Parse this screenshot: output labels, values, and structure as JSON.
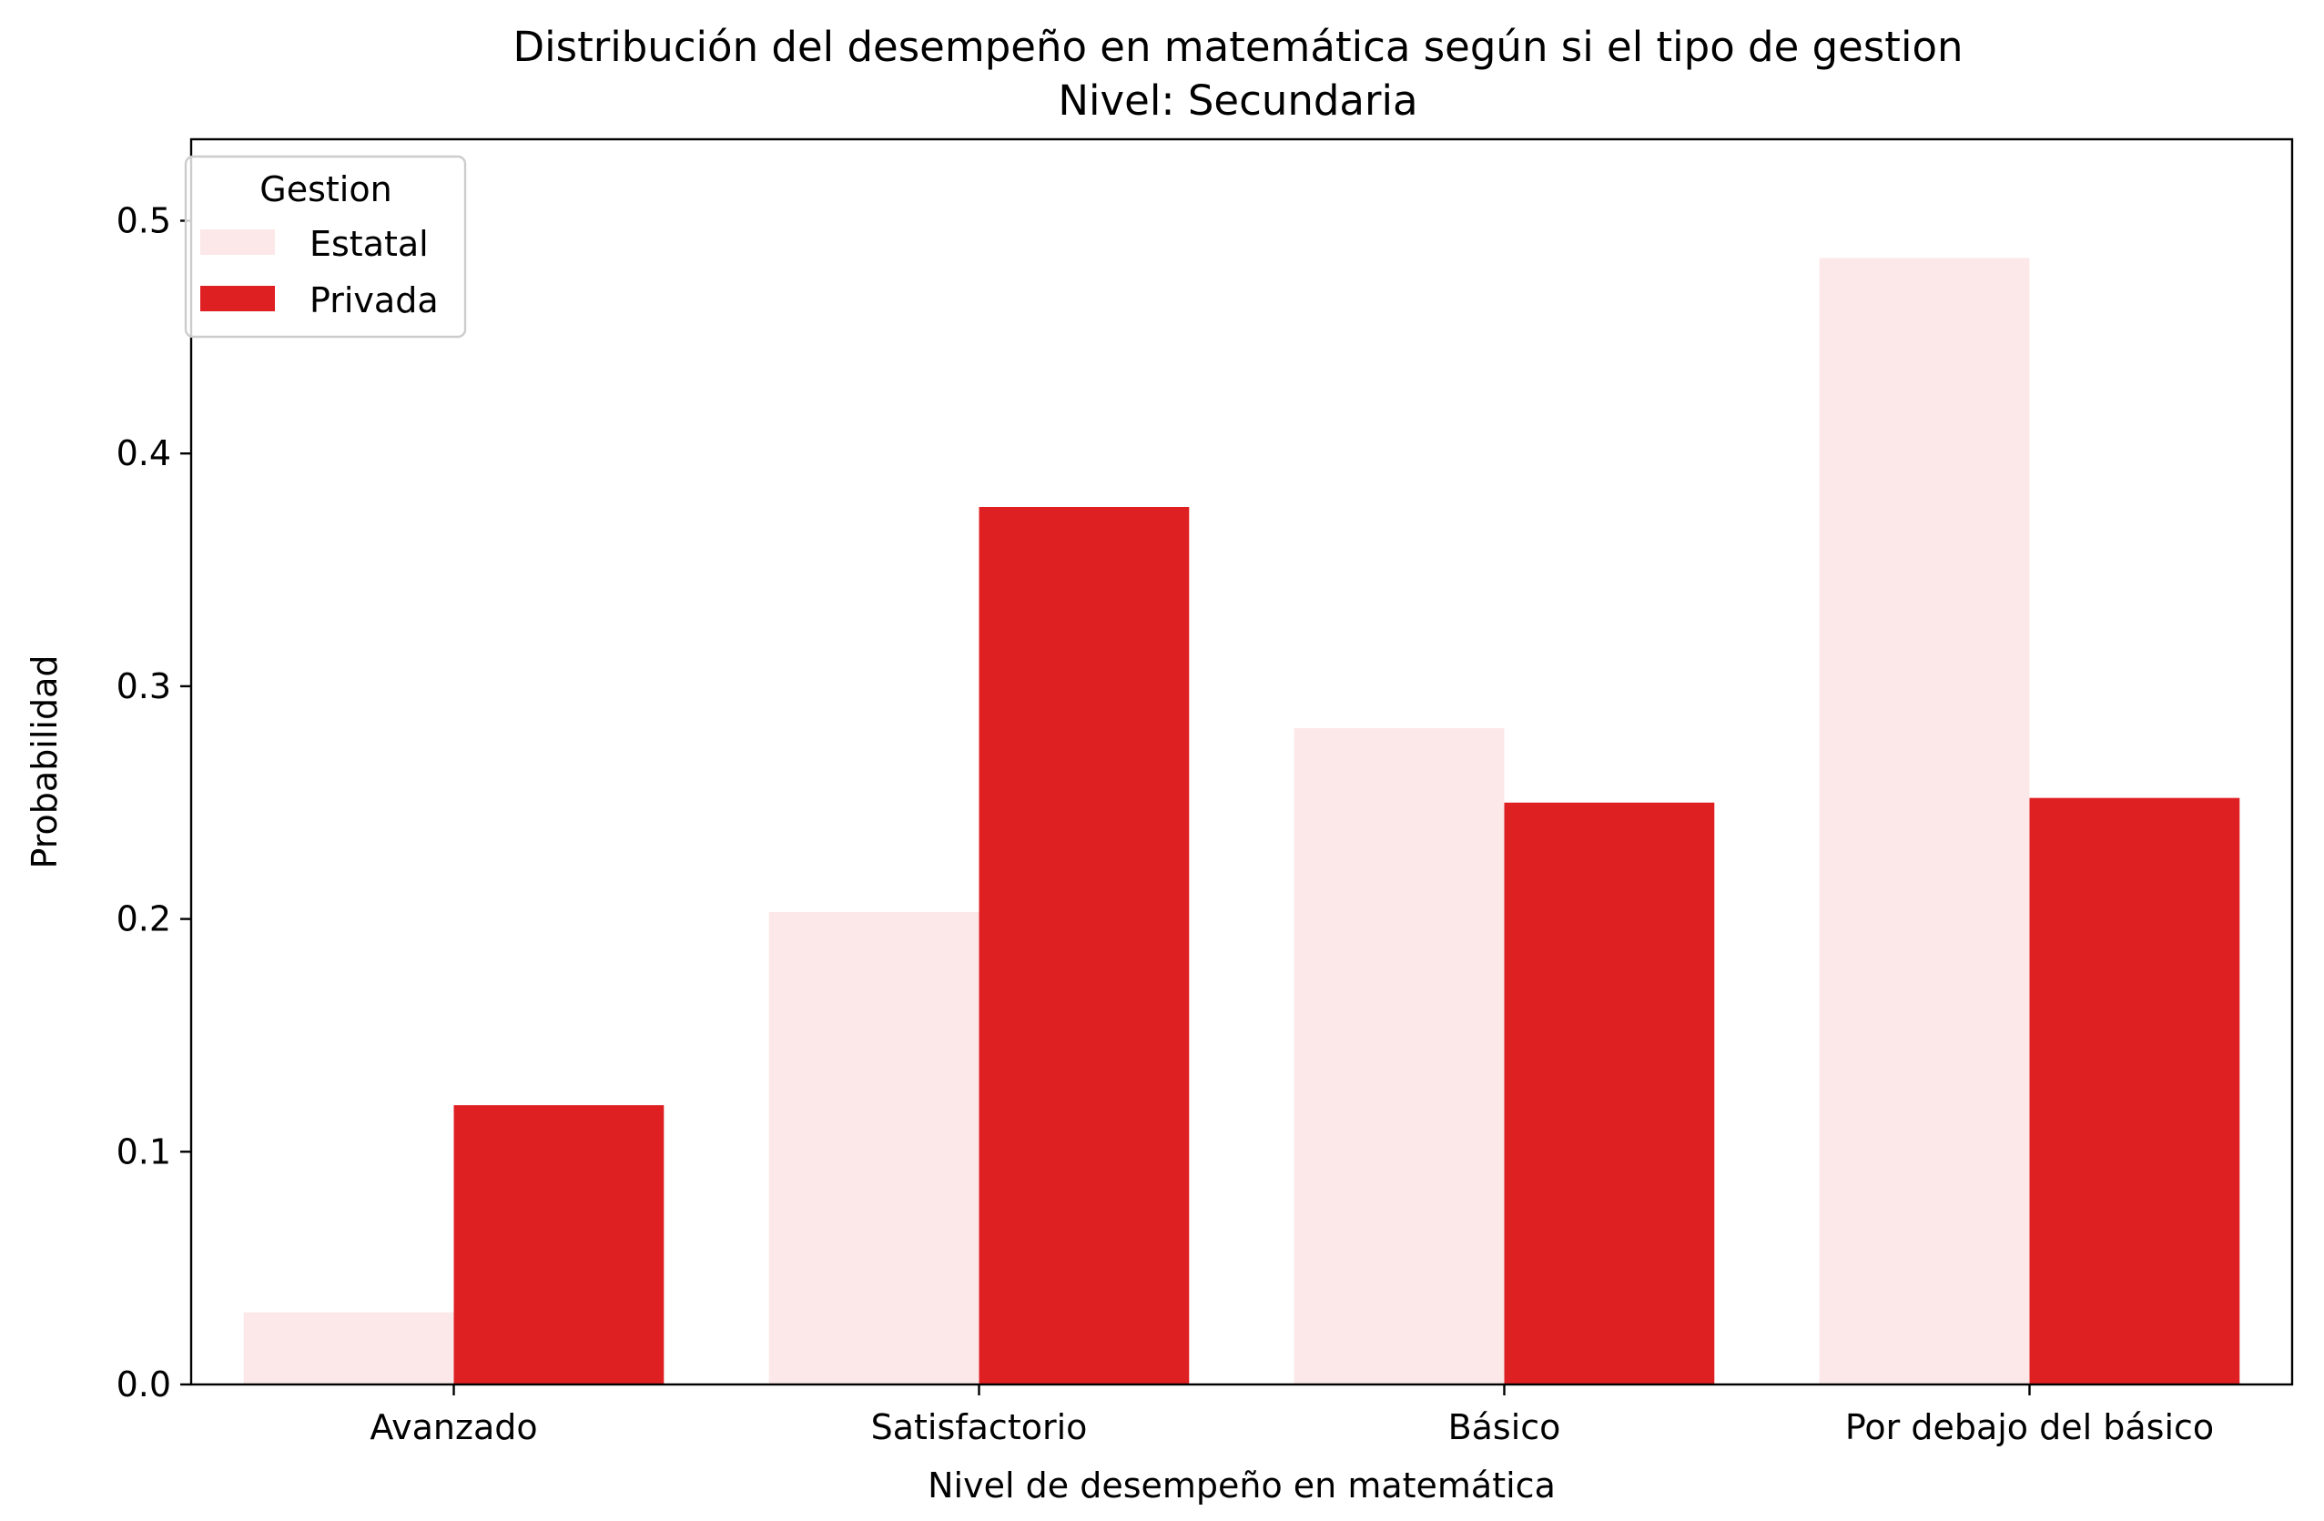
{
  "chart_data": {
    "type": "bar",
    "title": "Distribución del desempeño en matemática según si el tipo de gestion",
    "subtitle": "Nivel: Secundaria",
    "xlabel": "Nivel de desempeño en matemática",
    "ylabel": "Probabilidad",
    "categories": [
      "Avanzado",
      "Satisfactorio",
      "Básico",
      "Por debajo del básico"
    ],
    "ylim": [
      0,
      0.535
    ],
    "yticks": [
      0.0,
      0.1,
      0.2,
      0.3,
      0.4,
      0.5
    ],
    "ytick_labels": [
      "0.0",
      "0.1",
      "0.2",
      "0.3",
      "0.4",
      "0.5"
    ],
    "grid": false,
    "legend": {
      "title": "Gestion",
      "placement": "top-left"
    },
    "series": [
      {
        "name": "Estatal",
        "color": "#fce8e8",
        "values": [
          0.031,
          0.203,
          0.282,
          0.484
        ]
      },
      {
        "name": "Privada",
        "color": "#df2023",
        "values": [
          0.12,
          0.377,
          0.25,
          0.252
        ]
      }
    ]
  }
}
